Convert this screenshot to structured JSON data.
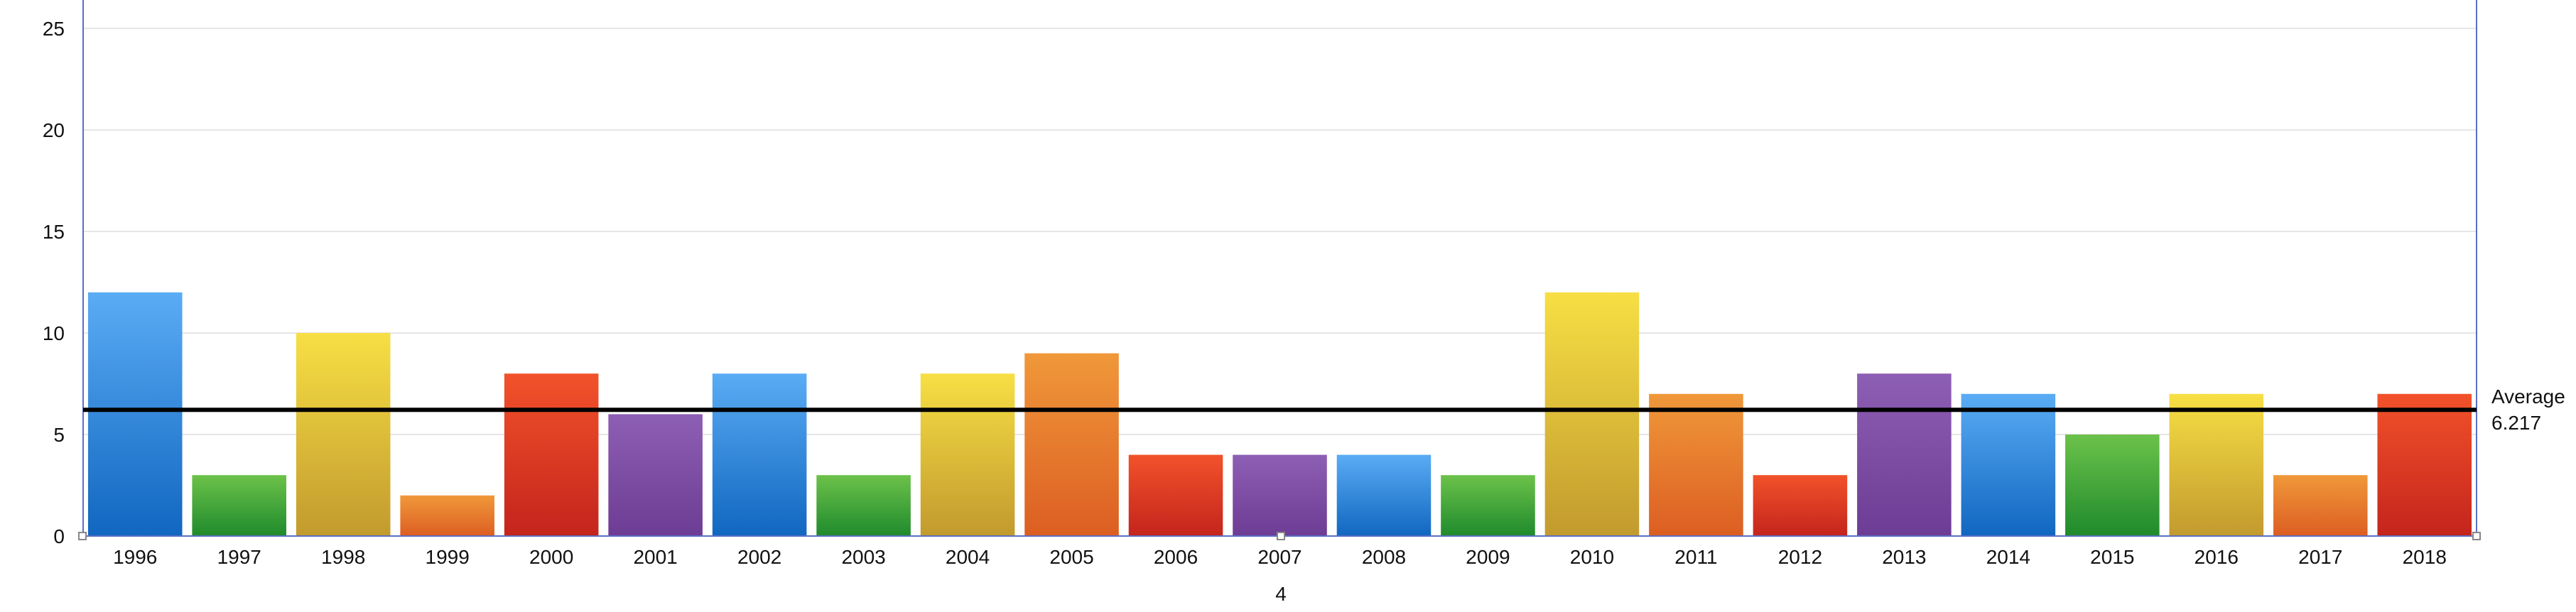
{
  "chart_data": {
    "type": "bar",
    "categories": [
      "1996",
      "1997",
      "1998",
      "1999",
      "2000",
      "2001",
      "2002",
      "2003",
      "2004",
      "2005",
      "2006",
      "2007",
      "2008",
      "2009",
      "2010",
      "2011",
      "2012",
      "2013",
      "2014",
      "2015",
      "2016",
      "2017",
      "2018"
    ],
    "values": [
      12,
      3,
      10,
      2,
      8,
      6,
      8,
      3,
      8,
      9,
      4,
      4,
      4,
      3,
      12,
      7,
      3,
      8,
      7,
      5,
      7,
      3,
      7
    ],
    "bar_colors": [
      "blue",
      "green",
      "yellow",
      "orange",
      "red",
      "purple",
      "blue",
      "green",
      "yellow",
      "orange",
      "red",
      "purple",
      "blue",
      "green",
      "yellow",
      "orange",
      "red",
      "purple",
      "blue",
      "green",
      "yellow",
      "orange",
      "red"
    ],
    "palette": {
      "blue": [
        "#5aacf4",
        "#1166c0"
      ],
      "green": [
        "#6cc24a",
        "#1f8a2c"
      ],
      "yellow": [
        "#f7df44",
        "#c29a2e"
      ],
      "orange": [
        "#f0983a",
        "#dc5e22"
      ],
      "red": [
        "#f2522a",
        "#c4241c"
      ],
      "purple": [
        "#8d5fb4",
        "#6d3c94"
      ]
    },
    "ylim": [
      0,
      26
    ],
    "yticks": [
      0,
      5,
      10,
      15,
      20,
      25
    ],
    "grid": true,
    "average": {
      "label": "Average",
      "value": "6.217",
      "numeric": 6.217
    },
    "xlabel": "4",
    "title": "",
    "ylabel": ""
  }
}
